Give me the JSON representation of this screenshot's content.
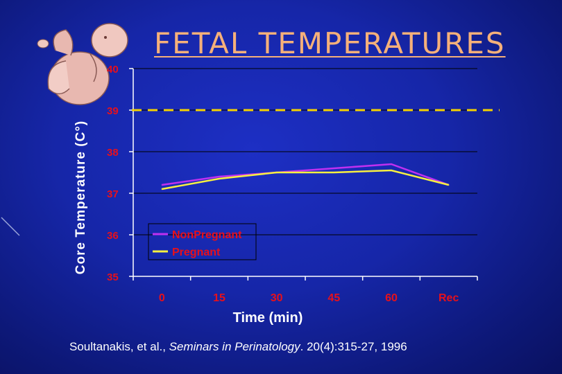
{
  "slide": {
    "title": "FETAL TEMPERATURES",
    "citation_authors": "Soultanakis, et al., ",
    "citation_journal": "Seminars in Perinatology",
    "citation_details": ". 20(4):315-27, 1996"
  },
  "colors": {
    "axis_text": "#e8101a",
    "nonpregnant": "#c030f0",
    "pregnant": "#f8f040",
    "threshold": "#f5d200",
    "title": "#f5b07a"
  },
  "chart_data": {
    "type": "line",
    "title": "FETAL TEMPERATURES",
    "xlabel": "Time (min)",
    "ylabel": "Core Temperature (C°)",
    "categories": [
      "0",
      "15",
      "30",
      "45",
      "60",
      "Rec"
    ],
    "yticks": [
      "35",
      "36",
      "37",
      "38",
      "39",
      "40"
    ],
    "ylim": [
      35,
      40
    ],
    "grid": true,
    "series": [
      {
        "name": "NonPregnant",
        "values": [
          37.2,
          37.4,
          37.5,
          37.6,
          37.7,
          37.2
        ]
      },
      {
        "name": "Pregnant",
        "values": [
          37.1,
          37.35,
          37.5,
          37.5,
          37.55,
          37.2
        ]
      }
    ],
    "threshold": {
      "value": 39,
      "style": "dashed"
    },
    "legend": {
      "position": "bottom-left",
      "entries": [
        "NonPregnant",
        "Pregnant"
      ]
    }
  }
}
